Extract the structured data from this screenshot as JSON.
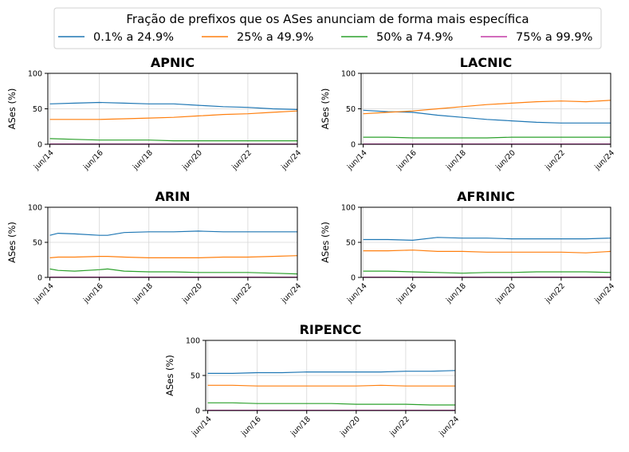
{
  "legend": {
    "title": "Fração de prefixos que os ASes anunciam de forma mais específica",
    "position": "top-center"
  },
  "chart_data": [
    {
      "type": "line",
      "title": "APNIC",
      "ylabel": "ASes (%)",
      "ylim": [
        0,
        100
      ],
      "yticks": [
        0,
        50,
        100
      ],
      "xlim": [
        "2014-05",
        "2024-06"
      ],
      "xticks": [
        "jun/14",
        "jun/16",
        "jun/18",
        "jun/20",
        "jun/22",
        "jun/24"
      ],
      "grid": true,
      "x": [
        "2014-06",
        "2015-06",
        "2016-06",
        "2017-06",
        "2018-06",
        "2019-06",
        "2020-06",
        "2021-06",
        "2022-06",
        "2023-06",
        "2024-06"
      ],
      "series": [
        {
          "name": "0.1% a 24.9%",
          "color": "#1f77b4",
          "values": [
            57,
            58,
            59,
            58,
            57,
            57,
            55,
            53,
            52,
            50,
            49
          ]
        },
        {
          "name": "25% a 49.9%",
          "color": "#ff7f0e",
          "values": [
            35,
            35,
            35,
            36,
            37,
            38,
            40,
            42,
            43,
            45,
            47
          ]
        },
        {
          "name": "50% a 74.9%",
          "color": "#2ca02c",
          "values": [
            8,
            7,
            6,
            6,
            6,
            5,
            5,
            5,
            5,
            5,
            5
          ]
        },
        {
          "name": "75% a 99.9%",
          "color": "#c33aa6",
          "values": [
            0.5,
            0.5,
            0.5,
            0.5,
            0.5,
            0.5,
            0.5,
            0.5,
            0.5,
            0.5,
            0.5
          ]
        }
      ]
    },
    {
      "type": "line",
      "title": "LACNIC",
      "ylabel": "ASes (%)",
      "ylim": [
        0,
        100
      ],
      "yticks": [
        0,
        50,
        100
      ],
      "xlim": [
        "2014-05",
        "2024-06"
      ],
      "xticks": [
        "jun/14",
        "jun/16",
        "jun/18",
        "jun/20",
        "jun/22",
        "jun/24"
      ],
      "grid": true,
      "x": [
        "2014-06",
        "2015-06",
        "2016-06",
        "2017-06",
        "2018-06",
        "2019-06",
        "2020-06",
        "2021-06",
        "2022-06",
        "2023-06",
        "2024-06"
      ],
      "series": [
        {
          "name": "0.1% a 24.9%",
          "color": "#1f77b4",
          "values": [
            48,
            46,
            45,
            41,
            38,
            35,
            33,
            31,
            30,
            30,
            30
          ]
        },
        {
          "name": "25% a 49.9%",
          "color": "#ff7f0e",
          "values": [
            43,
            45,
            47,
            50,
            53,
            56,
            58,
            60,
            61,
            60,
            62
          ]
        },
        {
          "name": "50% a 74.9%",
          "color": "#2ca02c",
          "values": [
            10,
            10,
            9,
            9,
            9,
            9,
            10,
            10,
            10,
            10,
            10
          ]
        },
        {
          "name": "75% a 99.9%",
          "color": "#c33aa6",
          "values": [
            0.5,
            0.5,
            0.5,
            0.5,
            0.5,
            0.5,
            0.5,
            0.5,
            0.5,
            0.5,
            0.5
          ]
        }
      ]
    },
    {
      "type": "line",
      "title": "ARIN",
      "ylabel": "ASes (%)",
      "ylim": [
        0,
        100
      ],
      "yticks": [
        0,
        50,
        100
      ],
      "xlim": [
        "2014-05",
        "2024-06"
      ],
      "xticks": [
        "jun/14",
        "jun/16",
        "jun/18",
        "jun/20",
        "jun/22",
        "jun/24"
      ],
      "grid": true,
      "x": [
        "2014-06",
        "2014-10",
        "2015-06",
        "2016-06",
        "2016-10",
        "2017-06",
        "2018-06",
        "2019-06",
        "2020-06",
        "2021-06",
        "2022-06",
        "2023-06",
        "2024-06"
      ],
      "series": [
        {
          "name": "0.1% a 24.9%",
          "color": "#1f77b4",
          "values": [
            60,
            63,
            62,
            60,
            60,
            64,
            65,
            65,
            66,
            65,
            65,
            65,
            65
          ]
        },
        {
          "name": "25% a 49.9%",
          "color": "#ff7f0e",
          "values": [
            28,
            29,
            29,
            30,
            30,
            29,
            28,
            28,
            28,
            29,
            29,
            30,
            31
          ]
        },
        {
          "name": "50% a 74.9%",
          "color": "#2ca02c",
          "values": [
            12,
            10,
            9,
            11,
            12,
            9,
            8,
            8,
            7,
            7,
            7,
            6,
            5
          ]
        },
        {
          "name": "75% a 99.9%",
          "color": "#c33aa6",
          "values": [
            0.5,
            0.5,
            0.5,
            0.5,
            0.5,
            0.5,
            0.5,
            0.5,
            0.5,
            0.5,
            0.5,
            0.5,
            0.5
          ]
        }
      ]
    },
    {
      "type": "line",
      "title": "AFRINIC",
      "ylabel": "ASes (%)",
      "ylim": [
        0,
        100
      ],
      "yticks": [
        0,
        50,
        100
      ],
      "xlim": [
        "2014-05",
        "2024-06"
      ],
      "xticks": [
        "jun/14",
        "jun/16",
        "jun/18",
        "jun/20",
        "jun/22",
        "jun/24"
      ],
      "grid": true,
      "x": [
        "2014-06",
        "2015-06",
        "2016-06",
        "2017-06",
        "2018-06",
        "2019-06",
        "2020-06",
        "2021-06",
        "2022-06",
        "2023-06",
        "2024-06"
      ],
      "series": [
        {
          "name": "0.1% a 24.9%",
          "color": "#1f77b4",
          "values": [
            54,
            54,
            53,
            57,
            56,
            56,
            55,
            55,
            55,
            55,
            56
          ]
        },
        {
          "name": "25% a 49.9%",
          "color": "#ff7f0e",
          "values": [
            38,
            38,
            39,
            37,
            37,
            36,
            36,
            36,
            36,
            35,
            37
          ]
        },
        {
          "name": "50% a 74.9%",
          "color": "#2ca02c",
          "values": [
            9,
            9,
            8,
            7,
            6,
            7,
            7,
            8,
            8,
            8,
            7
          ]
        },
        {
          "name": "75% a 99.9%",
          "color": "#c33aa6",
          "values": [
            0.5,
            0.5,
            0.5,
            0.5,
            0.5,
            0.5,
            0.5,
            0.5,
            0.5,
            0.5,
            0.5
          ]
        }
      ]
    },
    {
      "type": "line",
      "title": "RIPENCC",
      "ylabel": "ASes (%)",
      "ylim": [
        0,
        100
      ],
      "yticks": [
        0,
        50,
        100
      ],
      "xlim": [
        "2014-05",
        "2024-06"
      ],
      "xticks": [
        "jun/14",
        "jun/16",
        "jun/18",
        "jun/20",
        "jun/22",
        "jun/24"
      ],
      "grid": true,
      "x": [
        "2014-06",
        "2015-06",
        "2016-06",
        "2017-06",
        "2018-06",
        "2019-06",
        "2020-06",
        "2021-06",
        "2022-06",
        "2023-06",
        "2024-06"
      ],
      "series": [
        {
          "name": "0.1% a 24.9%",
          "color": "#1f77b4",
          "values": [
            53,
            53,
            54,
            54,
            55,
            55,
            55,
            55,
            56,
            56,
            57
          ]
        },
        {
          "name": "25% a 49.9%",
          "color": "#ff7f0e",
          "values": [
            36,
            36,
            35,
            35,
            35,
            35,
            35,
            36,
            35,
            35,
            35
          ]
        },
        {
          "name": "50% a 74.9%",
          "color": "#2ca02c",
          "values": [
            11,
            11,
            10,
            10,
            10,
            10,
            9,
            9,
            9,
            8,
            8
          ]
        },
        {
          "name": "75% a 99.9%",
          "color": "#c33aa6",
          "values": [
            0.5,
            0.5,
            0.5,
            0.5,
            0.5,
            0.5,
            0.5,
            0.5,
            0.5,
            0.5,
            0.5
          ]
        }
      ]
    }
  ]
}
